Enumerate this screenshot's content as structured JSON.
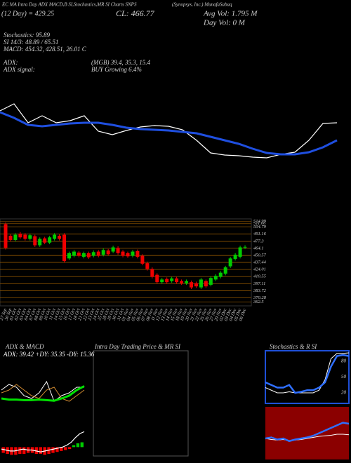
{
  "header": {
    "line1_left": "EC MA Intra Day ADX MACD,B SI,Stochastics,MR SI Charts SNPS",
    "line1_right": "(Synopsys, Inc.) MunafaSabaq",
    "ma": "(12 Day) = 429.25",
    "close": "CL: 466.77",
    "avg_vol": "Avg Vol: 1.795 M",
    "day_vol": "Day Vol: 0  M",
    "stochastics": "Stochastics: 95.89",
    "si": "SI 14/3: 48.89 / 65.51",
    "macd": "MACD: 454.32, 428.51, 26.01 C",
    "adx_label": "ADX:",
    "adx_values": "(MGB) 39.4, 35.3, 15.4",
    "signal_label": "ADX signal:",
    "signal": "BUY Growing 6.4%"
  },
  "intraday": {
    "title": "Intra Day Trading Price & MR SI"
  },
  "chart_data": [
    {
      "type": "line",
      "ylim": [
        0,
        130
      ],
      "series": [
        {
          "color": "#ffffff",
          "width": 1.2,
          "values": [
            92,
            102,
            75,
            85,
            75,
            78,
            85,
            63,
            58,
            64,
            69,
            71,
            70,
            65,
            50,
            32,
            29,
            28,
            26,
            25,
            30,
            33,
            50,
            74,
            75
          ]
        },
        {
          "color": "#1f4fe0",
          "width": 3,
          "values": [
            90,
            82,
            72,
            70,
            72,
            74,
            75,
            75,
            72,
            68,
            66,
            65,
            64,
            62,
            60,
            55,
            50,
            45,
            38,
            32,
            30,
            30,
            33,
            40,
            50
          ]
        }
      ]
    },
    {
      "type": "candlestick",
      "ylim": [
        355,
        520
      ],
      "up_color": "#00cc00",
      "down_color": "#ee0000",
      "grid_color": "#8a5200",
      "yticks": [
        514.99,
        511.06,
        504.79,
        491.16,
        477.3,
        464.1,
        450.57,
        437.44,
        424.01,
        410.55,
        397.11,
        383.72,
        370.28,
        362.5
      ],
      "categories": [
        "27 Sep",
        "30 Sep",
        "01 Oct",
        "02 Oct",
        "03 Oct",
        "04 Oct",
        "07 Oct",
        "08 Oct",
        "09 Oct",
        "10 Oct",
        "11 Oct",
        "14 Oct",
        "15 Oct",
        "16 Oct",
        "17 Oct",
        "18 Oct",
        "21 Oct",
        "22 Oct",
        "23 Oct",
        "24 Oct",
        "25 Oct",
        "28 Oct",
        "29 Oct",
        "30 Oct",
        "31 Oct",
        "01 Nov",
        "04 Nov",
        "05 Nov",
        "06 Nov",
        "07 Nov",
        "08 Nov",
        "11 Nov",
        "12 Nov",
        "13 Nov",
        "14 Nov",
        "15 Nov",
        "18 Nov",
        "19 Nov",
        "20 Nov",
        "21 Nov",
        "22 Nov",
        "25 Nov",
        "26 Nov",
        "27 Nov",
        "29 Nov",
        "02 Dec",
        "03 Dec",
        "04 Dec",
        "05 Dec",
        "06 Dec"
      ],
      "open": [
        510,
        488,
        480,
        492,
        490,
        482,
        487,
        470,
        483,
        475,
        482,
        488,
        490,
        445,
        450,
        456,
        448,
        455,
        450,
        458,
        452,
        460,
        458,
        465,
        458,
        455,
        450,
        459,
        450,
        436,
        425,
        414,
        400,
        406,
        402,
        407,
        402,
        398,
        400,
        398,
        390,
        402,
        395,
        405,
        410,
        416,
        430,
        444,
        448,
        466
      ],
      "high": [
        513,
        491,
        493,
        495,
        493,
        492,
        490,
        485,
        486,
        488,
        493,
        491,
        493,
        458,
        461,
        459,
        458,
        458,
        460,
        461,
        464,
        463,
        469,
        468,
        461,
        458,
        461,
        462,
        453,
        439,
        428,
        417,
        408,
        409,
        410,
        410,
        405,
        405,
        403,
        401,
        408,
        405,
        411,
        415,
        421,
        431,
        448,
        455,
        469,
        470
      ],
      "low": [
        462,
        477,
        477,
        482,
        479,
        479,
        467,
        467,
        472,
        472,
        479,
        479,
        437,
        442,
        447,
        447,
        445,
        444,
        447,
        447,
        449,
        450,
        455,
        452,
        447,
        446,
        447,
        445,
        432,
        422,
        407,
        397,
        397,
        397,
        399,
        397,
        395,
        395,
        387,
        389,
        387,
        389,
        392,
        402,
        407,
        413,
        427,
        441,
        445,
        463
      ],
      "close": [
        465,
        480,
        490,
        485,
        482,
        489,
        470,
        482,
        475,
        485,
        490,
        482,
        440,
        455,
        458,
        450,
        455,
        447,
        457,
        450,
        461,
        453,
        466,
        455,
        450,
        449,
        458,
        448,
        435,
        425,
        410,
        400,
        405,
        400,
        407,
        400,
        398,
        402,
        390,
        392,
        405,
        392,
        408,
        412,
        418,
        428,
        445,
        452,
        466,
        467
      ]
    },
    {
      "type": "line",
      "title": "ADX & MACD",
      "subtitle": "ADX: 39.42 +DY: 35.35 -DY: 15.36",
      "ylim": [
        0,
        100
      ],
      "series": [
        {
          "color": "#ffffff",
          "width": 1,
          "values": [
            55,
            65,
            60,
            45,
            40,
            50,
            70,
            35,
            45,
            50,
            60,
            60
          ]
        },
        {
          "color": "#d08a30",
          "width": 1,
          "values": [
            50,
            55,
            65,
            55,
            45,
            40,
            55,
            60,
            40,
            35,
            45,
            55
          ]
        },
        {
          "color": "#00e000",
          "width": 3,
          "values": [
            40,
            38,
            38,
            37,
            37,
            38,
            37,
            36,
            40,
            45,
            55,
            62
          ]
        }
      ]
    },
    {
      "type": "macd",
      "ylim": [
        -15,
        25
      ],
      "up_color": "#00cc00",
      "down_color": "#ee0000",
      "values": [
        -6,
        -7,
        -8,
        -8,
        -7,
        -7,
        -6,
        -6,
        -7,
        -7,
        -8,
        -7,
        -6,
        -5,
        -4,
        -3,
        -2,
        2,
        4,
        5
      ],
      "series": [
        {
          "color": "#ffffff",
          "width": 1.2,
          "values": [
            -2,
            -3,
            -4,
            -4,
            -3,
            -2,
            -3,
            -3,
            -4,
            -5,
            -4,
            -3,
            -2,
            -1,
            0,
            2,
            5,
            10,
            14,
            16
          ]
        }
      ]
    },
    {
      "type": "line",
      "title": "Stochastics & R SI",
      "ylim": [
        0,
        100
      ],
      "yticks": [
        80,
        50,
        20
      ],
      "border": "#1e4fd8",
      "series": [
        {
          "color": "#ffffff",
          "width": 1,
          "values": [
            30,
            25,
            20,
            20,
            22,
            20,
            20,
            20,
            20,
            25,
            45,
            85,
            95,
            95,
            96
          ]
        },
        {
          "color": "#2f6fff",
          "width": 2.5,
          "values": [
            40,
            35,
            30,
            30,
            35,
            20,
            22,
            25,
            25,
            30,
            40,
            70,
            90,
            92,
            90
          ]
        }
      ]
    },
    {
      "type": "line",
      "ylim": [
        0,
        100
      ],
      "background": "#8b0000",
      "series": [
        {
          "color": "#ffffff",
          "width": 1,
          "values": [
            40,
            38,
            37,
            38,
            36,
            37,
            38,
            40,
            42,
            44,
            45,
            46,
            48,
            48,
            47
          ]
        },
        {
          "color": "#2f6fff",
          "width": 2.5,
          "values": [
            40,
            42,
            38,
            40,
            35,
            38,
            40,
            42,
            45,
            50,
            55,
            60,
            65,
            70,
            68
          ]
        }
      ]
    }
  ]
}
